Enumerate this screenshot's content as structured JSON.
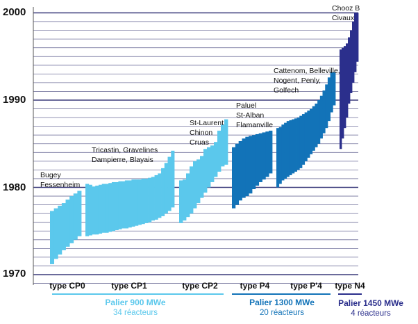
{
  "chart_data": {
    "type": "bar",
    "ylim": [
      1969,
      2000
    ],
    "yticks": [
      "1970",
      "1980",
      "1990",
      "2000"
    ],
    "grid": true,
    "categories": [
      "type CP0",
      "type CP1",
      "type CP2",
      "type P4",
      "type P'4",
      "type N4"
    ],
    "groups": [
      {
        "title": "Palier 900 MWe",
        "subtitle": "34 réacteurs",
        "color": "#5bc8ec"
      },
      {
        "title": "Palier 1300 MWe",
        "subtitle": "20 réacteurs",
        "color": "#1273b8"
      },
      {
        "title": "Palier 1450 MWe",
        "subtitle": "4 réacteurs",
        "color": "#2b2f8c"
      }
    ],
    "annotations": [
      {
        "category": "type CP0",
        "lines": [
          "Bugey",
          "Fessenheim"
        ]
      },
      {
        "category": "type CP1",
        "lines": [
          "Tricastin, Gravelines",
          "Dampierre, Blayais"
        ]
      },
      {
        "category": "type CP2",
        "lines": [
          "St-Laurent",
          "Chinon",
          "Cruas"
        ]
      },
      {
        "category": "type P4",
        "lines": [
          "Paluel",
          "St-Alban",
          "Flamanville"
        ]
      },
      {
        "category": "type P'4",
        "lines": [
          "Cattenom, Belleville,",
          "Nogent, Penly,",
          "Golfech"
        ]
      },
      {
        "category": "type N4",
        "lines": [
          "Chooz B",
          "Civaux"
        ]
      }
    ],
    "series": [
      {
        "category": "type CP0",
        "group": 0,
        "start": [
          1971.2,
          1971.8,
          1972.3,
          1972.8,
          1973.2,
          1973.6,
          1974.0,
          1974.4
        ],
        "end": [
          1977.3,
          1977.6,
          1977.9,
          1978.2,
          1978.6,
          1979.0,
          1979.3,
          1979.6
        ]
      },
      {
        "category": "type CP1",
        "group": 0,
        "start": [
          1974.4,
          1974.5,
          1974.6,
          1974.6,
          1974.7,
          1974.8,
          1974.8,
          1974.9,
          1975.0,
          1975.1,
          1975.2,
          1975.3,
          1975.3,
          1975.4,
          1975.5,
          1975.6,
          1975.7,
          1975.8,
          1975.9,
          1976.0,
          1976.2,
          1976.3,
          1976.5,
          1976.7,
          1977.0,
          1977.3,
          1977.7
        ],
        "end": [
          1980.4,
          1980.3,
          1980.1,
          1980.2,
          1980.3,
          1980.4,
          1980.4,
          1980.5,
          1980.6,
          1980.6,
          1980.7,
          1980.7,
          1980.8,
          1980.8,
          1980.9,
          1980.9,
          1980.9,
          1981.0,
          1981.0,
          1981.1,
          1981.2,
          1981.4,
          1981.6,
          1982.2,
          1982.8,
          1983.5,
          1984.2
        ]
      },
      {
        "category": "type CP2",
        "group": 0,
        "start": [
          1975.9,
          1976.2,
          1976.6,
          1977.0,
          1977.6,
          1978.2,
          1978.8,
          1979.4,
          1980.0,
          1980.6,
          1981.2,
          1981.8,
          1982.4,
          1982.6
        ],
        "end": [
          1980.8,
          1980.9,
          1981.6,
          1982.4,
          1983.0,
          1983.2,
          1983.6,
          1984.4,
          1984.6,
          1984.8,
          1985.2,
          1986.5,
          1987.2,
          1987.8
        ]
      },
      {
        "category": "type P4",
        "group": 1,
        "start": [
          1977.6,
          1978.0,
          1978.5,
          1978.8,
          1979.0,
          1979.3,
          1979.8,
          1980.2,
          1980.6,
          1980.9,
          1981.2,
          1981.6
        ],
        "end": [
          1984.6,
          1985.0,
          1985.3,
          1985.6,
          1985.8,
          1985.9,
          1986.0,
          1986.1,
          1986.2,
          1986.3,
          1986.4,
          1986.5
        ]
      },
      {
        "category": "type P'4",
        "group": 1,
        "start": [
          1980.0,
          1980.4,
          1980.8,
          1981.0,
          1981.2,
          1981.4,
          1981.6,
          1981.8,
          1982.0,
          1982.2,
          1982.6,
          1983.0,
          1983.4,
          1983.8,
          1984.2,
          1984.6,
          1985.0,
          1985.6,
          1986.2,
          1986.8,
          1987.6,
          1988.6,
          1989.4
        ],
        "end": [
          1986.8,
          1986.9,
          1987.2,
          1987.4,
          1987.6,
          1987.7,
          1987.8,
          1987.9,
          1988.0,
          1988.2,
          1988.4,
          1988.6,
          1988.8,
          1989.0,
          1989.3,
          1989.6,
          1990.0,
          1990.5,
          1991.1,
          1991.8,
          1992.6,
          1993.2,
          1993.2
        ]
      },
      {
        "category": "type N4",
        "group": 2,
        "start": [
          1984.4,
          1985.6,
          1986.8,
          1988.0,
          1989.6,
          1990.8,
          1992.0,
          1993.2,
          1994.4
        ],
        "end": [
          1995.8,
          1996.0,
          1996.2,
          1996.5,
          1997.2,
          1998.0,
          1999.0,
          2000.0,
          2000.0
        ]
      }
    ]
  }
}
